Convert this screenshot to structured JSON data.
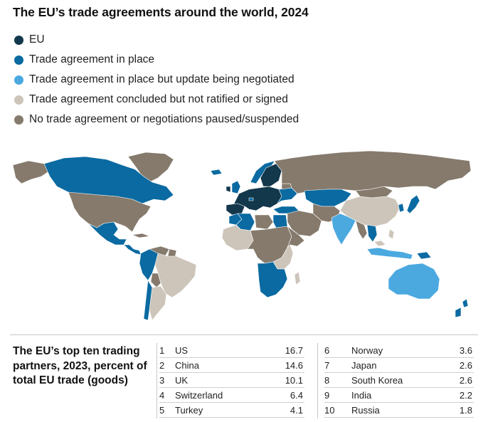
{
  "title": "The EU’s trade agreements around the world, 2024",
  "colors": {
    "eu": "#13374b",
    "in_place": "#0a6aa1",
    "update_negotiated": "#4ba9e0",
    "concluded": "#cdc5ba",
    "none": "#857a6c"
  },
  "legend": [
    {
      "label": "EU",
      "color": "#13374b"
    },
    {
      "label": "Trade agreement in place",
      "color": "#0a6aa1"
    },
    {
      "label": "Trade agreement in place but update being negotiated",
      "color": "#4ba9e0"
    },
    {
      "label": "Trade agreement concluded but not ratified or signed",
      "color": "#cdc5ba"
    },
    {
      "label": "No trade agreement or negotiations paused/suspended",
      "color": "#857a6c"
    }
  ],
  "table": {
    "caption": "The EU’s top ten trading partners, 2023, percent of total EU trade (goods)",
    "rows": [
      {
        "rank": "1",
        "country": "US",
        "value": "16.7"
      },
      {
        "rank": "2",
        "country": "China",
        "value": "14.6"
      },
      {
        "rank": "3",
        "country": "UK",
        "value": "10.1"
      },
      {
        "rank": "4",
        "country": "Switzerland",
        "value": "6.4"
      },
      {
        "rank": "5",
        "country": "Turkey",
        "value": "4.1"
      },
      {
        "rank": "6",
        "country": "Norway",
        "value": "3.6"
      },
      {
        "rank": "7",
        "country": "Japan",
        "value": "2.6"
      },
      {
        "rank": "8",
        "country": "South Korea",
        "value": "2.6"
      },
      {
        "rank": "9",
        "country": "India",
        "value": "2.2"
      },
      {
        "rank": "10",
        "country": "Russia",
        "value": "1.8"
      }
    ]
  }
}
